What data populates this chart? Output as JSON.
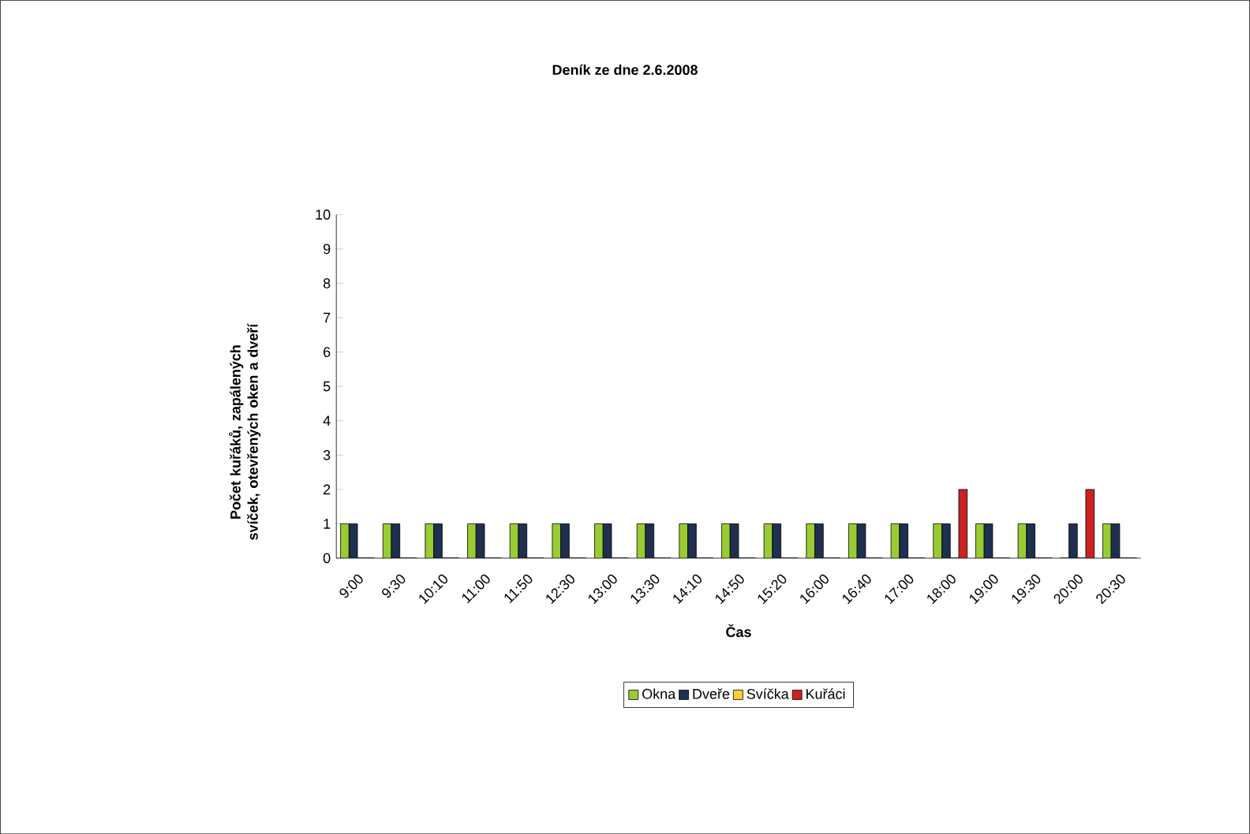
{
  "chart_data": {
    "type": "bar",
    "title": "Deník ze dne 2.6.2008",
    "xlabel": "Čas",
    "ylabel": "Počet kuřáků, zapálených svíček, otevřených oken a dveří",
    "categories": [
      "9:00",
      "9:30",
      "10:10",
      "11:00",
      "11:50",
      "12:30",
      "13:00",
      "13:30",
      "14:10",
      "14:50",
      "15:20",
      "16:00",
      "16:40",
      "17:00",
      "18:00",
      "19:00",
      "19:30",
      "20:00",
      "20:30"
    ],
    "series": [
      {
        "name": "Okna",
        "color": "#99cc33",
        "values": [
          1,
          1,
          1,
          1,
          1,
          1,
          1,
          1,
          1,
          1,
          1,
          1,
          1,
          1,
          1,
          1,
          1,
          0,
          1
        ]
      },
      {
        "name": "Dveře",
        "color": "#1f2f4f",
        "values": [
          1,
          1,
          1,
          1,
          1,
          1,
          1,
          1,
          1,
          1,
          1,
          1,
          1,
          1,
          1,
          1,
          1,
          1,
          1
        ]
      },
      {
        "name": "Svíčka",
        "color": "#ffcc33",
        "values": [
          0,
          0,
          0,
          0,
          0,
          0,
          0,
          0,
          0,
          0,
          0,
          0,
          0,
          0,
          0,
          0,
          0,
          0,
          0
        ]
      },
      {
        "name": "Kuřáci",
        "color": "#cc2222",
        "values": [
          0,
          0,
          0,
          0,
          0,
          0,
          0,
          0,
          0,
          0,
          0,
          0,
          0,
          0,
          2,
          0,
          0,
          2,
          0
        ]
      }
    ],
    "ylim": [
      0,
      10
    ],
    "yticks": [
      0,
      1,
      2,
      3,
      4,
      5,
      6,
      7,
      8,
      9,
      10
    ],
    "grid": false,
    "legend": "bottom"
  }
}
